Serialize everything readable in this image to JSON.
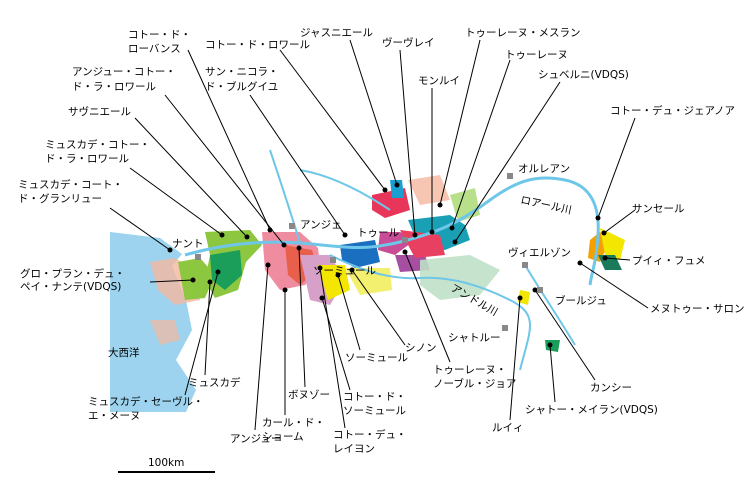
{
  "appellations": [
    [
      "コトー・ド・",
      "ローバンス"
    ],
    [
      "コトー・ド・ロワール"
    ],
    [
      "ジャスニエール"
    ],
    [
      "ヴーヴレイ"
    ],
    [
      "トゥーレーヌ・メスラン"
    ],
    [
      "トゥーレーヌ"
    ],
    [
      "モンルイ"
    ],
    [
      "シュベルニ(VDQS)"
    ],
    [
      "アンジュー・コトー・",
      "ド・ラ・ロワール"
    ],
    [
      "サン・ニコラ・",
      "ド・ブルグイユ"
    ],
    [
      "サヴニエール"
    ],
    [
      "ミュスカデ・コトー・",
      "ド・ラ・ロワール"
    ],
    [
      "ミュスカデ・コート・",
      "ド・グランリュー"
    ],
    [
      "グロ・プラン・デュ・",
      "ペイ・ナンテ(VDQS)"
    ],
    [
      "コトー・デュ・ジェアノア"
    ],
    [
      "サンセール"
    ],
    [
      "プイィ・フュメ"
    ],
    [
      "メヌトゥー・サロン"
    ],
    [
      "ミュスカデ"
    ],
    [
      "ミュスカデ・セーヴル・",
      "エ・メーヌ"
    ],
    [
      "アンジュー"
    ],
    [
      "カール・ド・",
      "ショーム"
    ],
    [
      "ボヌゾー"
    ],
    [
      "コトー・ド・",
      "ソーミュール"
    ],
    [
      "コトー・デュ・",
      "レイヨン"
    ],
    [
      "ソーミュール"
    ],
    [
      "シノン"
    ],
    [
      "トゥーレーヌ・",
      "ノーブル・ジョア"
    ],
    [
      "ルイィ"
    ],
    [
      "シャトー・メイラン(VDQS)"
    ],
    [
      "カンシー"
    ]
  ],
  "cities": [
    "ナント",
    "アンジェ",
    "トゥール",
    "ソーミュール",
    "オルレアン",
    "ヴィエルゾン",
    "ブールジュ",
    "シャトルー"
  ],
  "rivers": [
    "ロアール川",
    "アンドル川"
  ],
  "sea": "大西洋",
  "scale": "100km"
}
